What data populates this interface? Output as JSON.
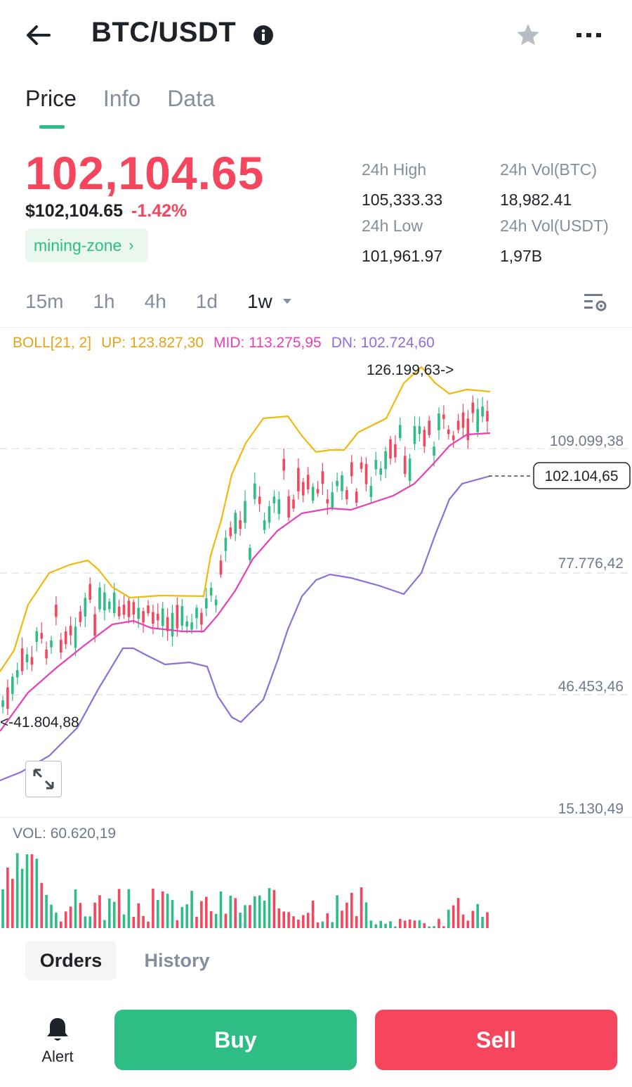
{
  "header": {
    "pair": "BTC/USDT",
    "back_icon": "arrow-left-icon",
    "info_icon": "info-icon",
    "star_icon": "star-icon",
    "more_icon": "more-dots-icon"
  },
  "tabs": [
    {
      "label": "Price",
      "active": true
    },
    {
      "label": "Info",
      "active": false
    },
    {
      "label": "Data",
      "active": false
    }
  ],
  "price": {
    "last": "102,104.65",
    "fiat": "$102,104.65",
    "change": "-1.42%",
    "zone": "mining-zone",
    "zone_chevron": "›"
  },
  "stats": {
    "high_label": "24h High",
    "high_value": "105,333.33",
    "low_label": "24h Low",
    "low_value": "101,961.97",
    "vol_btc_label": "24h Vol(BTC)",
    "vol_btc_value": "18,982.41",
    "vol_usdt_label": "24h Vol(USDT)",
    "vol_usdt_value": "1,97B"
  },
  "intervals": [
    "15m",
    "1h",
    "4h",
    "1d"
  ],
  "interval_active": "1w",
  "indicator": {
    "name": "BOLL[21, 2]",
    "up_label": "UP: 123.827,30",
    "mid_label": "MID: 113.275,95",
    "dn_label": "DN: 102.724,60"
  },
  "chart": {
    "axis_labels": [
      "109.099,38",
      "77.776,42",
      "46.453,46",
      "15.130,49"
    ],
    "current_price_tag": "102.104,65",
    "high_marker": "126.199,63->",
    "low_marker": "<-41.804,88",
    "vol_label": "VOL: 60.620,19"
  },
  "colors": {
    "up": "#2ebd85",
    "down": "#f6465d",
    "boll_up": "#f0b90b",
    "boll_mid": "#e83fb4",
    "boll_dn": "#8e6fd6"
  },
  "orders_tabs": {
    "active": "Orders",
    "inactive": "History"
  },
  "bottom": {
    "alert": "Alert",
    "buy": "Buy",
    "sell": "Sell"
  }
}
